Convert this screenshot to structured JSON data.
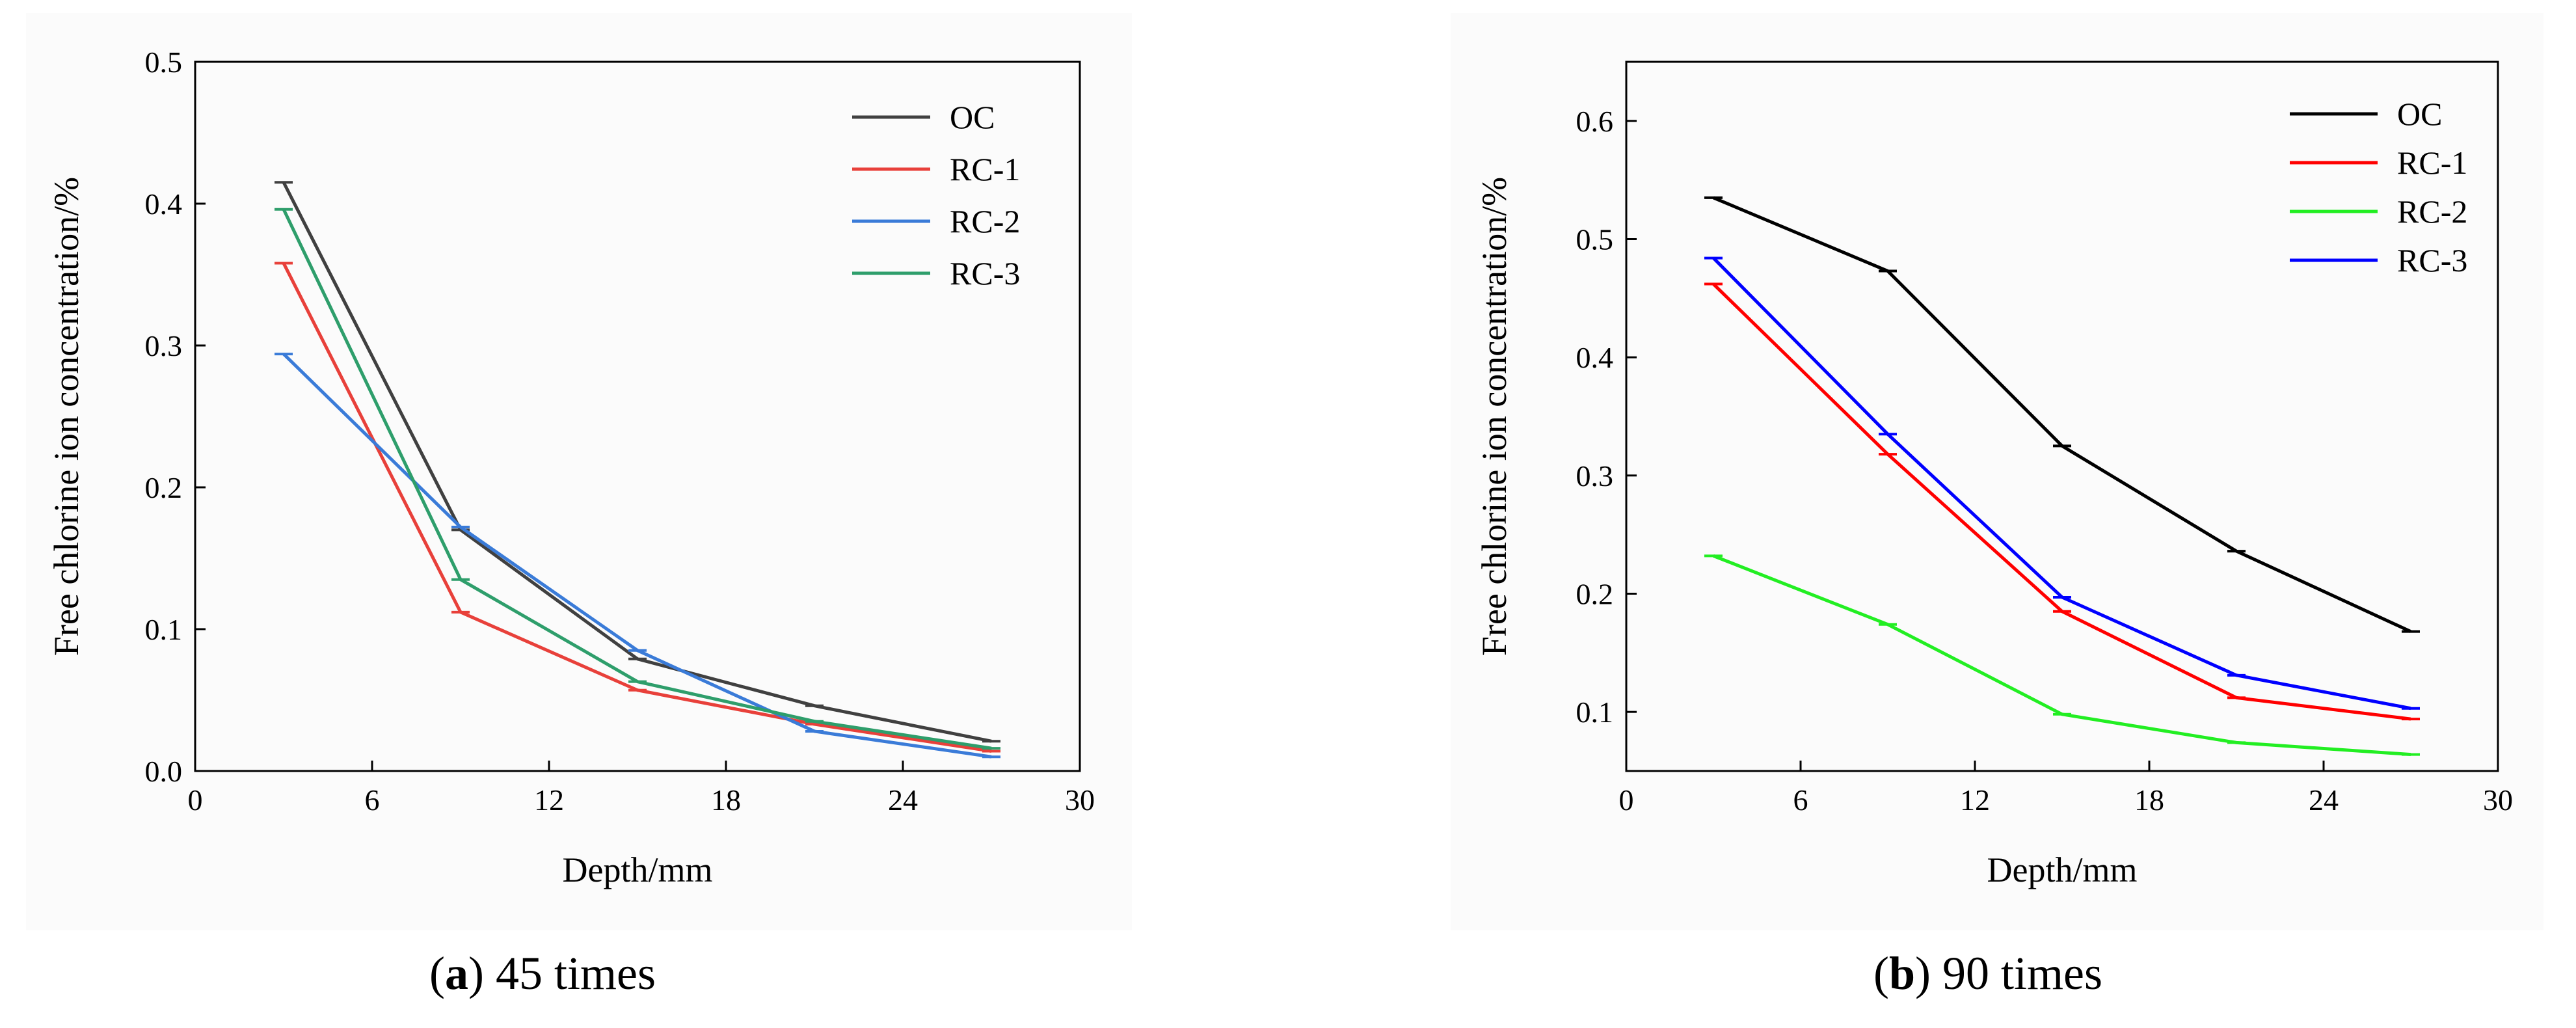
{
  "chart_data": [
    {
      "type": "line",
      "title": "",
      "caption": {
        "letter": "a",
        "text": "45 times"
      },
      "xlabel": "Depth/mm",
      "ylabel": "Free chlorine ion  concentration/%",
      "xlim": [
        0,
        30
      ],
      "ylim": [
        0,
        0.5
      ],
      "xticks": [
        0,
        6,
        12,
        18,
        24,
        30
      ],
      "yticks": [
        0.0,
        0.1,
        0.2,
        0.3,
        0.4,
        0.5
      ],
      "ytick_labels": [
        "0.0",
        "0.1",
        "0.2",
        "0.3",
        "0.4",
        "0.5"
      ],
      "x": [
        3,
        9,
        15,
        21,
        27
      ],
      "legend_position": "top-right",
      "series": [
        {
          "name": "OC",
          "color": "#404040",
          "values": [
            0.415,
            0.17,
            0.079,
            0.046,
            0.021
          ]
        },
        {
          "name": "RC-1",
          "color": "#e8403a",
          "values": [
            0.358,
            0.112,
            0.057,
            0.033,
            0.014
          ]
        },
        {
          "name": "RC-2",
          "color": "#3a7bd8",
          "values": [
            0.294,
            0.172,
            0.085,
            0.028,
            0.01
          ]
        },
        {
          "name": "RC-3",
          "color": "#2e9e6b",
          "values": [
            0.396,
            0.135,
            0.063,
            0.035,
            0.016
          ]
        }
      ]
    },
    {
      "type": "line",
      "title": "",
      "caption": {
        "letter": "b",
        "text": "90 times"
      },
      "xlabel": "Depth/mm",
      "ylabel": "Free chlorine ion  concentration/%",
      "xlim": [
        0,
        30
      ],
      "ylim": [
        0.05,
        0.65
      ],
      "xticks": [
        0,
        6,
        12,
        18,
        24,
        30
      ],
      "yticks": [
        0.1,
        0.2,
        0.3,
        0.4,
        0.5,
        0.6
      ],
      "ytick_labels": [
        "0.1",
        "0.2",
        "0.3",
        "0.4",
        "0.5",
        "0.6"
      ],
      "x": [
        3,
        9,
        15,
        21,
        27
      ],
      "legend_position": "top-right",
      "series": [
        {
          "name": "OC",
          "color": "#000000",
          "values": [
            0.535,
            0.473,
            0.325,
            0.236,
            0.168
          ]
        },
        {
          "name": "RC-1",
          "color": "#ff0000",
          "values": [
            0.462,
            0.318,
            0.185,
            0.112,
            0.094
          ]
        },
        {
          "name": "RC-2",
          "color": "#22ee22",
          "values": [
            0.232,
            0.174,
            0.098,
            0.074,
            0.064
          ]
        },
        {
          "name": "RC-3",
          "color": "#0000ff",
          "values": [
            0.484,
            0.335,
            0.197,
            0.131,
            0.103
          ]
        }
      ]
    }
  ]
}
